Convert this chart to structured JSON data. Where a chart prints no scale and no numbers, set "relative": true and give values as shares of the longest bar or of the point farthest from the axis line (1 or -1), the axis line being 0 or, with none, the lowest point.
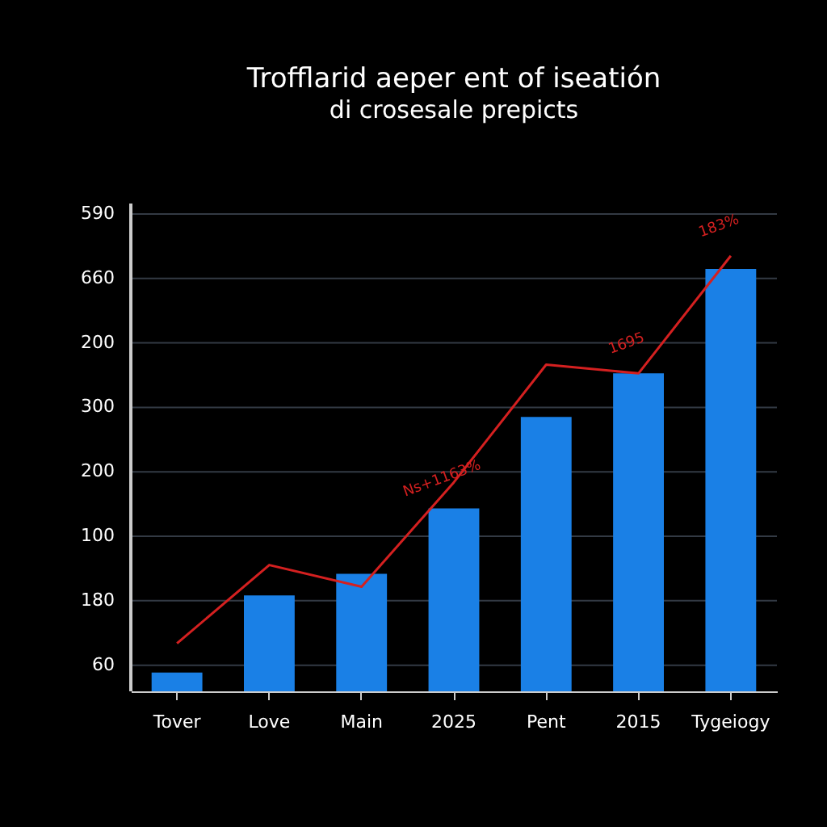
{
  "chart_data": {
    "type": "bar",
    "title": "Trofflarid aeper ent of iseatión",
    "subtitle": "di crosesale prepicts",
    "relative": true,
    "categories": [
      "Tover",
      "Love",
      "Main",
      "2025",
      "Pent",
      "2015",
      "Tygeiogy"
    ],
    "series": [
      {
        "color": "#1a80e6",
        "values": [
          0.043,
          0.22,
          0.27,
          0.42,
          0.63,
          0.73,
          0.97
        ]
      },
      {
        "type": "line",
        "color": "#d42020",
        "values": [
          0.11,
          0.29,
          0.24,
          0.48,
          0.75,
          0.73,
          1.0
        ]
      }
    ],
    "grid": "y",
    "annotations": [
      "60",
      "180",
      "100",
      "200",
      "300",
      "200",
      "660",
      "590",
      {
        "text": "Ns+1163%",
        "x": "2025",
        "y": 0.5
      },
      "1695",
      "183%"
    ]
  }
}
